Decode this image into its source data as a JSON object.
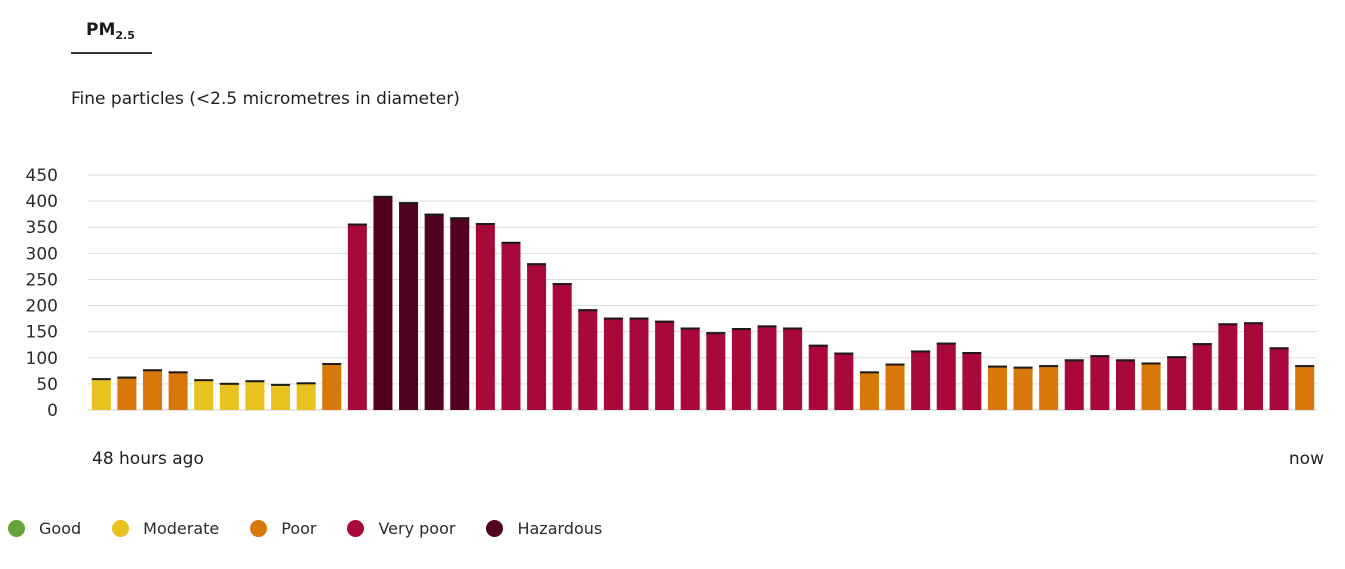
{
  "tab": {
    "label_main": "PM",
    "label_sub": "2.5"
  },
  "subtitle": "Fine particles (<2.5 micrometres in diameter)",
  "range": {
    "start": "48 hours ago",
    "end": "now"
  },
  "legend": [
    {
      "key": "good",
      "label": "Good",
      "color": "#67a13a"
    },
    {
      "key": "moderate",
      "label": "Moderate",
      "color": "#e8c21f"
    },
    {
      "key": "poor",
      "label": "Poor",
      "color": "#d8780a"
    },
    {
      "key": "very_poor",
      "label": "Very poor",
      "color": "#a8093a"
    },
    {
      "key": "hazardous",
      "label": "Hazardous",
      "color": "#520221"
    }
  ],
  "chart_data": {
    "type": "bar",
    "title": "",
    "xlabel": "",
    "ylabel": "",
    "ylim": [
      0,
      450
    ],
    "yticks": [
      0,
      50,
      100,
      150,
      200,
      250,
      300,
      350,
      400,
      450
    ],
    "grid": true,
    "legend_position": "bottom-left",
    "values": [
      61,
      64,
      78,
      74,
      59,
      52,
      57,
      50,
      53,
      90,
      357,
      410,
      398,
      376,
      369,
      358,
      322,
      281,
      243,
      193,
      177,
      177,
      171,
      158,
      149,
      157,
      162,
      158,
      125,
      110,
      74,
      89,
      114,
      129,
      111,
      85,
      83,
      86,
      97,
      105,
      97,
      91,
      103,
      128,
      166,
      168,
      120,
      86
    ],
    "categories_shown": [
      "moderate",
      "poor",
      "poor",
      "poor",
      "moderate",
      "moderate",
      "moderate",
      "moderate",
      "moderate",
      "poor",
      "very_poor",
      "hazardous",
      "hazardous",
      "hazardous",
      "hazardous",
      "very_poor",
      "very_poor",
      "very_poor",
      "very_poor",
      "very_poor",
      "very_poor",
      "very_poor",
      "very_poor",
      "very_poor",
      "very_poor",
      "very_poor",
      "very_poor",
      "very_poor",
      "very_poor",
      "very_poor",
      "poor",
      "poor",
      "very_poor",
      "very_poor",
      "very_poor",
      "poor",
      "poor",
      "poor",
      "very_poor",
      "very_poor",
      "very_poor",
      "poor",
      "very_poor",
      "very_poor",
      "very_poor",
      "very_poor",
      "very_poor",
      "poor"
    ]
  }
}
